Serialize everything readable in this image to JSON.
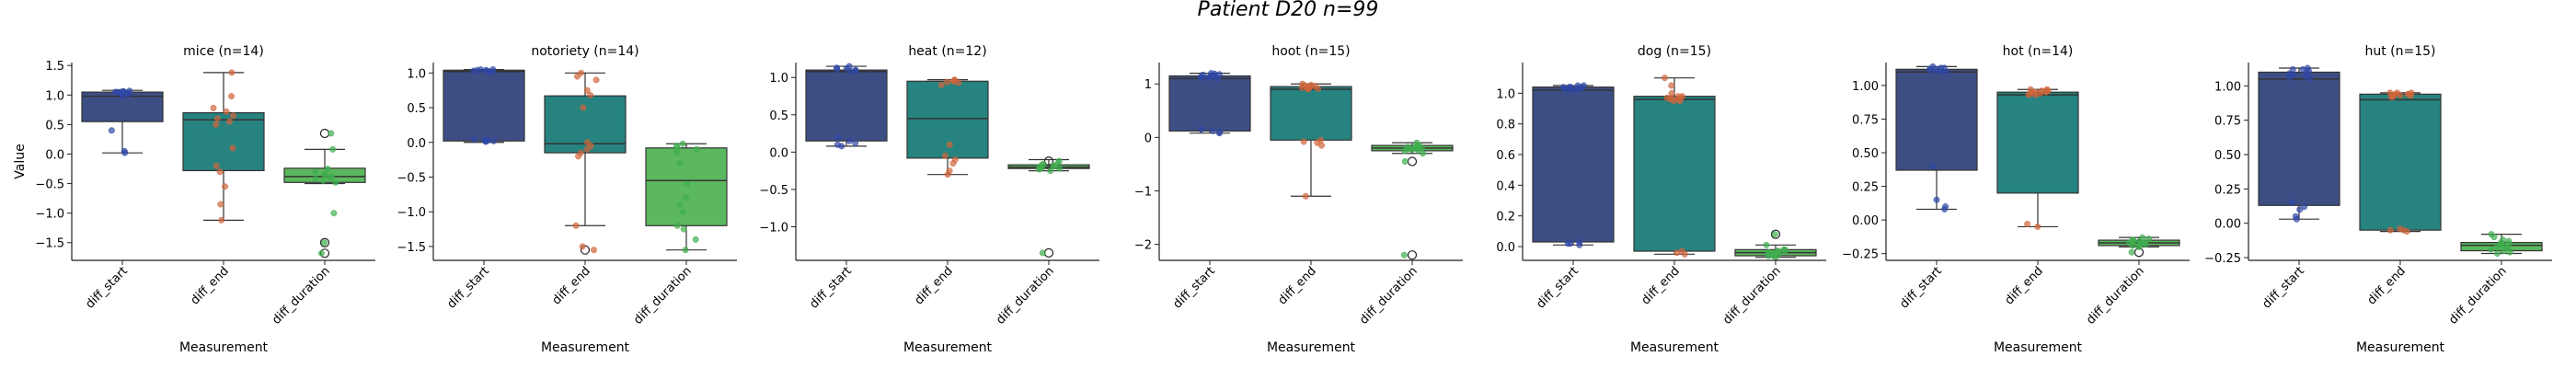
{
  "figure_title": "Patient D20 n=99",
  "colors": {
    "diff_start": "#3d4e85",
    "diff_end": "#268380",
    "diff_duration": "#5cb85f",
    "pts_start": "#2f47a6",
    "pts_end": "#d0653a",
    "pts_duration": "#3fae4f",
    "axis": "#222222",
    "median": "#333333"
  },
  "chart_data": [
    {
      "type": "box",
      "title": "mice (n=14)",
      "xlabel": "Measurement",
      "ylabel": "Value",
      "categories": [
        "diff_start",
        "diff_end",
        "diff_duration"
      ],
      "ylim": [
        -1.8,
        1.55
      ],
      "yticks": [
        1.5,
        1.0,
        0.5,
        0.0,
        -0.5,
        -1.0,
        -1.5
      ],
      "ytick_labels": [
        "1.5",
        "1.0",
        "0.5",
        "0.0",
        "−0.5",
        "−1.0",
        "−1.5"
      ],
      "boxes": [
        {
          "q1": 0.55,
          "median": 0.98,
          "q3": 1.05,
          "whislo": 0.02,
          "whishi": 1.08,
          "fliers": [],
          "points": [
            1.05,
            1.04,
            1.06,
            1.03,
            1.05,
            1.07,
            1.02,
            1.04,
            1.06,
            0.98,
            0.4,
            0.05,
            0.02,
            1.05
          ]
        },
        {
          "q1": -0.28,
          "median": 0.58,
          "q3": 0.7,
          "whislo": -1.12,
          "whishi": 1.38,
          "fliers": [],
          "points": [
            1.38,
            0.98,
            0.78,
            0.72,
            0.65,
            0.6,
            0.55,
            0.5,
            0.1,
            -0.2,
            -0.3,
            -0.55,
            -0.85,
            -1.12
          ]
        },
        {
          "q1": -0.48,
          "median": -0.38,
          "q3": -0.24,
          "whislo": -0.5,
          "whishi": 0.08,
          "fliers": [
            0.35,
            -1.5,
            -1.68
          ],
          "points": [
            0.35,
            0.08,
            -0.25,
            -0.3,
            -0.35,
            -0.38,
            -0.4,
            -0.42,
            -0.45,
            -0.48,
            -1.0,
            -1.5,
            -1.68,
            -0.33
          ]
        }
      ]
    },
    {
      "type": "box",
      "title": "notoriety (n=14)",
      "xlabel": "Measurement",
      "ylabel": "",
      "categories": [
        "diff_start",
        "diff_end",
        "diff_duration"
      ],
      "ylim": [
        -1.7,
        1.15
      ],
      "yticks": [
        1.0,
        0.5,
        0.0,
        -0.5,
        -1.0,
        -1.5
      ],
      "ytick_labels": [
        "1.0",
        "0.5",
        "0.0",
        "−0.5",
        "−1.0",
        "−1.5"
      ],
      "boxes": [
        {
          "q1": 0.02,
          "median": 1.02,
          "q3": 1.04,
          "whislo": 0.0,
          "whishi": 1.05,
          "fliers": [],
          "points": [
            1.04,
            1.03,
            1.05,
            1.02,
            1.04,
            1.05,
            1.03,
            1.02,
            0.04,
            0.03,
            0.02,
            0.01,
            0.03,
            0.02
          ]
        },
        {
          "q1": -0.15,
          "median": -0.02,
          "q3": 0.67,
          "whislo": -1.2,
          "whishi": 1.0,
          "fliers": [
            -1.55
          ],
          "points": [
            1.0,
            0.95,
            0.9,
            0.75,
            0.68,
            0.0,
            -0.05,
            -0.1,
            -0.15,
            -0.2,
            -1.2,
            -1.5,
            -1.55,
            0.5
          ]
        },
        {
          "q1": -1.2,
          "median": -0.55,
          "q3": -0.08,
          "whislo": -1.55,
          "whishi": -0.02,
          "fliers": [],
          "points": [
            -0.02,
            -0.05,
            -0.08,
            -0.1,
            -0.15,
            -0.3,
            -0.6,
            -0.8,
            -1.0,
            -1.2,
            -1.25,
            -1.4,
            -1.55,
            -0.9
          ]
        }
      ]
    },
    {
      "type": "box",
      "title": "heat (n=12)",
      "xlabel": "Measurement",
      "ylabel": "",
      "categories": [
        "diff_start",
        "diff_end",
        "diff_duration"
      ],
      "ylim": [
        -1.45,
        1.2
      ],
      "yticks": [
        1.0,
        0.5,
        0.0,
        -0.5,
        -1.0
      ],
      "ytick_labels": [
        "1.0",
        "0.5",
        "0.0",
        "−0.5",
        "−1.0"
      ],
      "boxes": [
        {
          "q1": 0.15,
          "median": 1.08,
          "q3": 1.1,
          "whislo": 0.08,
          "whishi": 1.15,
          "fliers": [],
          "points": [
            1.15,
            1.12,
            1.1,
            1.08,
            0.1,
            0.08,
            0.12,
            0.15,
            1.09,
            1.11,
            0.2,
            1.13
          ]
        },
        {
          "q1": -0.08,
          "median": 0.45,
          "q3": 0.95,
          "whislo": -0.3,
          "whishi": 0.97,
          "fliers": [],
          "points": [
            0.97,
            0.95,
            0.93,
            0.96,
            -0.1,
            -0.25,
            -0.05,
            -0.3,
            0.94,
            -0.15,
            0.9,
            0.1
          ]
        },
        {
          "q1": -0.22,
          "median": -0.2,
          "q3": -0.17,
          "whislo": -0.25,
          "whishi": -0.1,
          "fliers": [
            -0.12,
            -1.35
          ],
          "points": [
            -0.12,
            -0.15,
            -0.18,
            -0.2,
            -0.22,
            -0.25,
            -0.17,
            -0.19,
            -1.35,
            -0.21,
            -0.16,
            -0.23
          ]
        }
      ]
    },
    {
      "type": "box",
      "title": "hoot (n=15)",
      "xlabel": "Measurement",
      "ylabel": "",
      "categories": [
        "diff_start",
        "diff_end",
        "diff_duration"
      ],
      "ylim": [
        -2.3,
        1.4
      ],
      "yticks": [
        1,
        0,
        -1,
        -2
      ],
      "ytick_labels": [
        "1",
        "0",
        "−1",
        "−2"
      ],
      "boxes": [
        {
          "q1": 0.12,
          "median": 1.1,
          "q3": 1.15,
          "whislo": 0.08,
          "whishi": 1.2,
          "fliers": [],
          "points": [
            1.2,
            1.18,
            1.15,
            1.14,
            1.12,
            1.1,
            1.16,
            1.13,
            0.1,
            0.08,
            0.12,
            0.15,
            1.17,
            1.11,
            1.19
          ]
        },
        {
          "q1": -0.05,
          "median": 0.9,
          "q3": 0.95,
          "whislo": -1.1,
          "whishi": 1.0,
          "fliers": [],
          "points": [
            1.0,
            0.98,
            0.95,
            0.93,
            0.92,
            0.9,
            0.97,
            -0.05,
            -0.1,
            -0.15,
            -1.1,
            0.96,
            0.94,
            -0.08,
            0.91
          ]
        },
        {
          "q1": -0.25,
          "median": -0.2,
          "q3": -0.15,
          "whislo": -0.3,
          "whishi": -0.1,
          "fliers": [
            -0.45,
            -2.2
          ],
          "points": [
            -0.1,
            -0.15,
            -0.18,
            -0.2,
            -0.22,
            -0.25,
            -0.3,
            -0.45,
            -2.2,
            -0.17,
            -0.19,
            -0.21,
            -0.23,
            -0.16,
            -0.24
          ]
        }
      ]
    },
    {
      "type": "box",
      "title": "dog (n=15)",
      "xlabel": "Measurement",
      "ylabel": "",
      "categories": [
        "diff_start",
        "diff_end",
        "diff_duration"
      ],
      "ylim": [
        -0.09,
        1.2
      ],
      "yticks": [
        1.0,
        0.8,
        0.6,
        0.4,
        0.2,
        0.0
      ],
      "ytick_labels": [
        "1.0",
        "0.8",
        "0.6",
        "0.4",
        "0.2",
        "0.0"
      ],
      "boxes": [
        {
          "q1": 0.03,
          "median": 1.02,
          "q3": 1.04,
          "whislo": 0.01,
          "whishi": 1.05,
          "fliers": [],
          "points": [
            1.05,
            1.04,
            1.03,
            1.02,
            1.04,
            1.03,
            1.05,
            1.02,
            1.04,
            0.03,
            0.02,
            0.01,
            1.03,
            1.04,
            0.02
          ]
        },
        {
          "q1": -0.03,
          "median": 0.96,
          "q3": 0.98,
          "whislo": -0.05,
          "whishi": 1.1,
          "fliers": [],
          "points": [
            1.1,
            1.05,
            0.98,
            0.97,
            0.96,
            0.95,
            0.98,
            0.97,
            -0.03,
            -0.05,
            -0.04,
            0.96,
            0.97,
            0.95,
            1.0
          ]
        },
        {
          "q1": -0.06,
          "median": -0.04,
          "q3": -0.02,
          "whislo": -0.07,
          "whishi": 0.01,
          "fliers": [
            0.08
          ],
          "points": [
            0.08,
            0.01,
            -0.02,
            -0.03,
            -0.04,
            -0.05,
            -0.06,
            -0.07,
            -0.02,
            -0.03,
            -0.05,
            -0.04,
            -0.06,
            -0.03,
            -0.05
          ]
        }
      ]
    },
    {
      "type": "box",
      "title": "hot (n=14)",
      "xlabel": "Measurement",
      "ylabel": "",
      "categories": [
        "diff_start",
        "diff_end",
        "diff_duration"
      ],
      "ylim": [
        -0.3,
        1.17
      ],
      "yticks": [
        1.0,
        0.75,
        0.5,
        0.25,
        0.0,
        -0.25
      ],
      "ytick_labels": [
        "1.00",
        "0.75",
        "0.50",
        "0.25",
        "0.00",
        "−0.25"
      ],
      "boxes": [
        {
          "q1": 0.37,
          "median": 1.1,
          "q3": 1.12,
          "whislo": 0.08,
          "whishi": 1.14,
          "fliers": [],
          "points": [
            1.14,
            1.13,
            1.12,
            1.11,
            1.1,
            1.12,
            1.13,
            1.11,
            0.15,
            0.1,
            0.08,
            1.12,
            1.1,
            0.4
          ]
        },
        {
          "q1": 0.2,
          "median": 0.93,
          "q3": 0.95,
          "whislo": -0.05,
          "whishi": 0.97,
          "fliers": [],
          "points": [
            0.97,
            0.96,
            0.95,
            0.94,
            0.93,
            0.95,
            0.96,
            -0.05,
            -0.03,
            0.94,
            0.95,
            0.96,
            0.93,
            0.97
          ]
        },
        {
          "q1": -0.19,
          "median": -0.17,
          "q3": -0.15,
          "whislo": -0.2,
          "whishi": -0.13,
          "fliers": [
            -0.24
          ],
          "points": [
            -0.13,
            -0.15,
            -0.16,
            -0.17,
            -0.18,
            -0.19,
            -0.2,
            -0.24,
            -0.14,
            -0.16,
            -0.18,
            -0.17,
            -0.19,
            -0.15
          ]
        }
      ]
    },
    {
      "type": "box",
      "title": "hut (n=15)",
      "xlabel": "Measurement",
      "ylabel": "",
      "categories": [
        "diff_start",
        "diff_end",
        "diff_duration"
      ],
      "ylim": [
        -0.27,
        1.17
      ],
      "yticks": [
        1.0,
        0.75,
        0.5,
        0.25,
        0.0,
        -0.25
      ],
      "ytick_labels": [
        "1.00",
        "0.75",
        "0.50",
        "0.25",
        "0.00",
        "−0.25"
      ],
      "boxes": [
        {
          "q1": 0.13,
          "median": 1.05,
          "q3": 1.1,
          "whislo": 0.03,
          "whishi": 1.13,
          "fliers": [],
          "points": [
            1.13,
            1.12,
            1.1,
            1.08,
            1.05,
            1.06,
            1.11,
            1.09,
            0.15,
            0.12,
            0.05,
            0.03,
            1.07,
            1.12,
            0.1
          ]
        },
        {
          "q1": -0.05,
          "median": 0.9,
          "q3": 0.94,
          "whislo": -0.06,
          "whishi": 0.95,
          "fliers": [],
          "points": [
            0.95,
            0.94,
            0.93,
            0.92,
            0.94,
            0.95,
            -0.05,
            -0.06,
            -0.04,
            0.93,
            0.94,
            0.92,
            0.95,
            0.93,
            -0.05
          ]
        },
        {
          "q1": -0.2,
          "median": -0.16,
          "q3": -0.14,
          "whislo": -0.22,
          "whishi": -0.08,
          "fliers": [],
          "points": [
            -0.08,
            -0.1,
            -0.12,
            -0.14,
            -0.15,
            -0.16,
            -0.17,
            -0.18,
            -0.2,
            -0.22,
            -0.13,
            -0.15,
            -0.19,
            -0.17,
            -0.21
          ]
        }
      ]
    }
  ]
}
